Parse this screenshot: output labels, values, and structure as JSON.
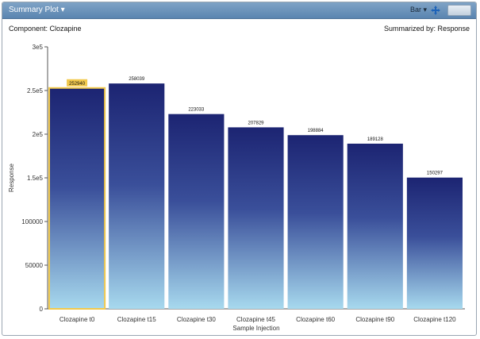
{
  "window": {
    "panel_title": "Summary Plot ▾",
    "chart_type_label": "Bar ▾",
    "icons": {
      "move": "move-arrows-icon",
      "window": "window-control-icon"
    }
  },
  "header": {
    "component": "Component: Clozapine",
    "summarized_by": "Summarized by: Response"
  },
  "chart_data": {
    "type": "bar",
    "categories": [
      "Clozapine t0",
      "Clozapine t15",
      "Clozapine t30",
      "Clozapine t45",
      "Clozapine t60",
      "Clozapine t90",
      "Clozapine t120"
    ],
    "values": [
      252940,
      258039,
      223033,
      207829,
      198884,
      189128,
      150297
    ],
    "bar_labels": [
      "252940",
      "258039",
      "223033",
      "207829",
      "198884",
      "189128",
      "150297"
    ],
    "selected_index": 0,
    "xlabel": "Sample Injection",
    "ylabel": "Response",
    "ylim": [
      0,
      300000
    ],
    "yticks": [
      {
        "value": 0,
        "label": "0"
      },
      {
        "value": 50000,
        "label": "50000"
      },
      {
        "value": 100000,
        "label": "100000"
      },
      {
        "value": 150000,
        "label": "1.5e5"
      },
      {
        "value": 200000,
        "label": "2e5"
      },
      {
        "value": 250000,
        "label": "2.5e5"
      },
      {
        "value": 300000,
        "label": "3e5"
      }
    ],
    "colors": {
      "bar_top": "#1c2472",
      "bar_bottom": "#a7d9ee",
      "highlight": "#f2c94c"
    },
    "grid": false,
    "legend": "none"
  }
}
